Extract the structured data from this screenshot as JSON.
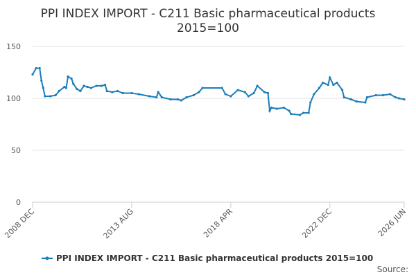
{
  "chart_data": {
    "type": "line",
    "title": "PPI INDEX IMPORT - C211 Basic pharmaceutical products",
    "subtitle": "2015=100",
    "source": "Source:",
    "x": [
      "2008 DEC",
      "2009 FEB",
      "2009 APR",
      "2009 MAY",
      "2009 JUN",
      "2009 JUL",
      "2009 OCT",
      "2010 JAN",
      "2010 MAR",
      "2010 JUN",
      "2010 JUL",
      "2010 AUG",
      "2010 OCT",
      "2010 NOV",
      "2011 JAN",
      "2011 MAR",
      "2011 MAY",
      "2011 JUL",
      "2011 SEP",
      "2011 DEC",
      "2012 MAR",
      "2012 MAY",
      "2012 JUN",
      "2012 SEP",
      "2012 DEC",
      "2013 MAR",
      "2013 AUG",
      "2013 DEC",
      "2014 JUN",
      "2014 OCT",
      "2014 NOV",
      "2015 JAN",
      "2015 JUN",
      "2015 OCT",
      "2015 DEC",
      "2016 MAR",
      "2016 JUL",
      "2016 OCT",
      "2016 DEC",
      "2017 NOV",
      "2018 JAN",
      "2018 APR",
      "2018 AUG",
      "2018 DEC",
      "2019 FEB",
      "2019 MAY",
      "2019 JUL",
      "2019 NOV",
      "2020 JAN",
      "2020 FEB",
      "2020 MAR",
      "2020 JUN",
      "2020 OCT",
      "2021 JAN",
      "2021 FEB",
      "2021 JUL",
      "2021 SEP",
      "2021 DEC",
      "2022 JAN",
      "2022 MAR",
      "2022 JUN",
      "2022 AUG",
      "2022 NOV",
      "2022 DEC",
      "2023 FEB",
      "2023 APR",
      "2023 JUL",
      "2023 AUG",
      "2023 DEC",
      "2024 MAR",
      "2024 AUG",
      "2024 SEP",
      "2025 FEB",
      "2025 JUN",
      "2025 OCT",
      "2026 JAN",
      "2026 MAR",
      "2026 JUN"
    ],
    "series": [
      {
        "name": "PPI INDEX IMPORT - C211 Basic pharmaceutical products 2015=100",
        "color": "#1a7db8",
        "values": [
          123,
          129,
          129,
          117,
          110,
          102,
          102,
          103,
          107,
          111,
          110,
          121,
          119,
          114,
          109,
          107,
          112,
          111,
          110,
          112,
          112,
          113,
          107,
          106,
          107,
          105,
          105,
          104,
          102,
          101,
          106,
          101,
          99,
          99,
          98,
          101,
          103,
          106,
          110,
          110,
          104,
          102,
          108,
          106,
          102,
          105,
          112,
          106,
          105,
          88,
          91,
          90,
          91,
          88,
          85,
          84,
          86,
          86,
          96,
          104,
          110,
          115,
          113,
          120,
          113,
          115,
          108,
          101,
          99,
          97,
          96,
          101,
          103,
          103,
          104,
          101,
          100,
          99
        ]
      }
    ],
    "xlim": [
      "2008 DEC",
      "2026 JUN"
    ],
    "xticks": [
      "2008 DEC",
      "2013 AUG",
      "2018 APR",
      "2022 DEC",
      "2026 JUN"
    ],
    "ylim": [
      0,
      150
    ],
    "yticks": [
      0,
      50,
      100,
      150
    ],
    "grid": true
  }
}
